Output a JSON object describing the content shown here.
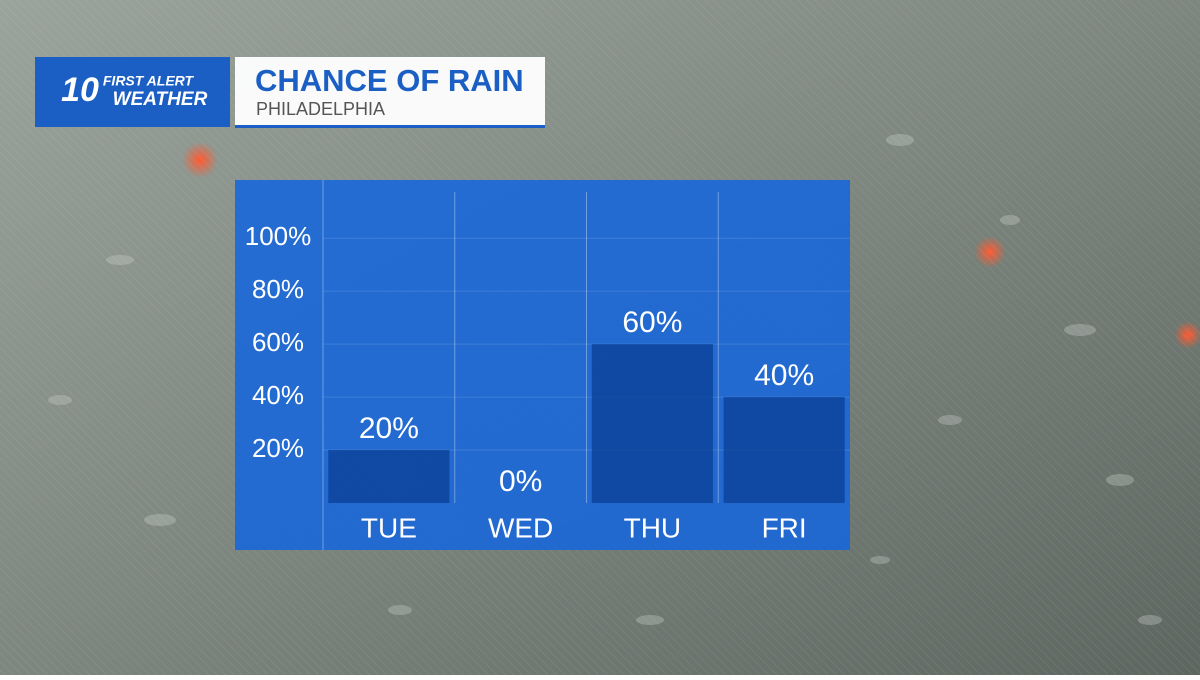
{
  "logo": {
    "channel": "10",
    "line1": "FIRST ALERT",
    "line2": "WEATHER"
  },
  "chart_data": {
    "type": "bar",
    "title": "CHANCE OF RAIN",
    "subtitle": "PHILADELPHIA",
    "categories": [
      "TUE",
      "WED",
      "THU",
      "FRI"
    ],
    "values": [
      20,
      0,
      60,
      40
    ],
    "value_labels": [
      "20%",
      "0%",
      "60%",
      "40%"
    ],
    "color": "#0b3f94",
    "ylim": [
      0,
      122
    ],
    "yticks": [
      {
        "value": 20,
        "label": "20%"
      },
      {
        "value": 40,
        "label": "40%"
      },
      {
        "value": 60,
        "label": "60%"
      },
      {
        "value": 80,
        "label": "80%"
      },
      {
        "value": 100,
        "label": "100%"
      }
    ],
    "grid": true
  }
}
